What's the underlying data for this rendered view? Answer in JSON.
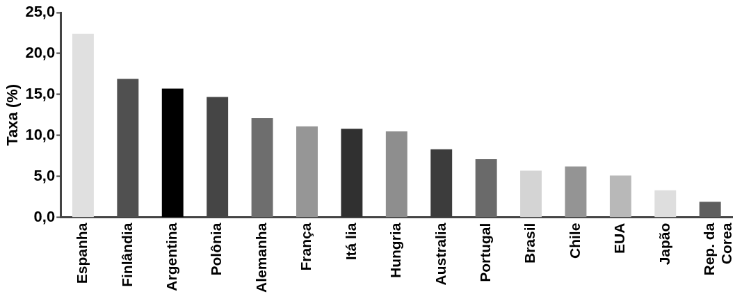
{
  "chart_data": {
    "type": "bar",
    "ylabel": "Taxa (%)",
    "categories": [
      "Espanha",
      "Finlândia",
      "Argentina",
      "Polônia",
      "Alemanha",
      "França",
      "Itá lia",
      "Hungria",
      "Australia",
      "Portugal",
      "Brasil",
      "Chile",
      "EUA",
      "Japão",
      "Rep. da\nCorea"
    ],
    "values": [
      22.4,
      16.9,
      15.7,
      14.7,
      12.1,
      11.1,
      10.8,
      10.5,
      8.3,
      7.1,
      5.7,
      6.2,
      5.1,
      3.3,
      1.9
    ],
    "colors": [
      "#e0e0e0",
      "#505050",
      "#000000",
      "#454545",
      "#6e6e6e",
      "#969696",
      "#303030",
      "#8e8e8e",
      "#3c3c3c",
      "#6a6a6a",
      "#d4d4d4",
      "#949494",
      "#b8b8b8",
      "#dedede",
      "#5e5e5e"
    ],
    "ylim": [
      0,
      25
    ],
    "yticks": [
      {
        "value": 0,
        "label": "0,0"
      },
      {
        "value": 5,
        "label": "5,0"
      },
      {
        "value": 10,
        "label": "10,0"
      },
      {
        "value": 15,
        "label": "15,0"
      },
      {
        "value": 20,
        "label": "20,0"
      },
      {
        "value": 25,
        "label": "25,0"
      }
    ],
    "grid": false,
    "legend": false
  }
}
